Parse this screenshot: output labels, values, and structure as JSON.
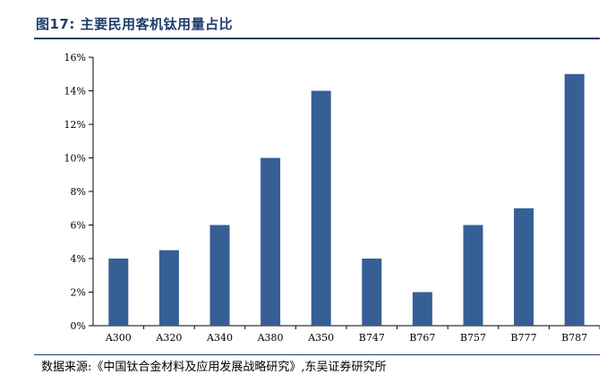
{
  "figure": {
    "label": "图17:",
    "title": "主要民用客机钛用量占比",
    "source": "数据来源:《中国钛合金材料及应用发展战略研究》,东吴证券研究所"
  },
  "colors": {
    "bar": "#365f96",
    "title": "#1f3d6b",
    "axis": "#000000"
  },
  "chart_data": {
    "type": "bar",
    "title": "主要民用客机钛用量占比",
    "xlabel": "",
    "ylabel": "",
    "categories": [
      "A300",
      "A320",
      "A340",
      "A380",
      "A350",
      "B747",
      "B767",
      "B757",
      "B777",
      "B787"
    ],
    "values": [
      4,
      4.5,
      6,
      10,
      14,
      4,
      2,
      6,
      7,
      15
    ],
    "unit": "%",
    "ylim": [
      0,
      16
    ],
    "yticks": [
      0,
      2,
      4,
      6,
      8,
      10,
      12,
      14,
      16
    ],
    "ytick_labels": [
      "0%",
      "2%",
      "4%",
      "6%",
      "8%",
      "10%",
      "12%",
      "14%",
      "16%"
    ],
    "grid": false,
    "legend": "none"
  }
}
